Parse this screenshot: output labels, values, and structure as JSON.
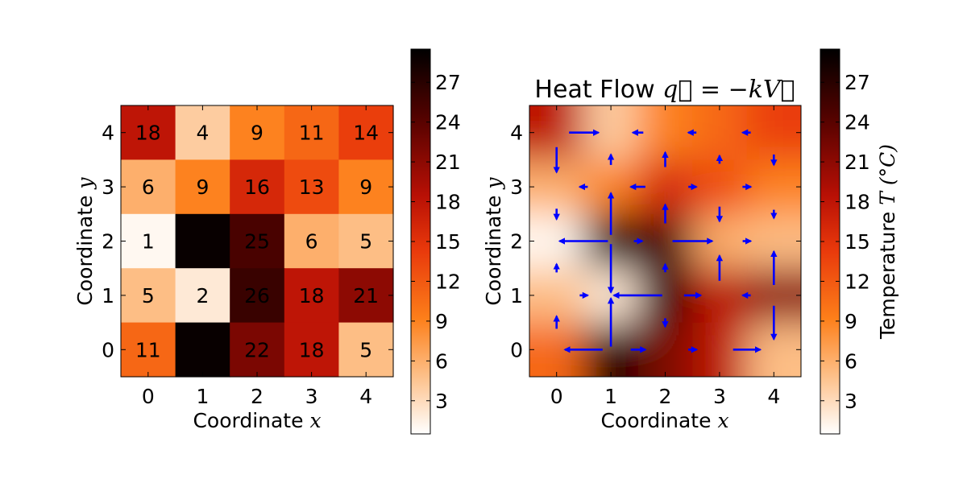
{
  "chart_data": [
    {
      "type": "heatmap",
      "xlabel": "Coordinate",
      "xlabel_math": "x",
      "ylabel": "Coordinate",
      "ylabel_math": "y",
      "x_ticks": [
        "0",
        "1",
        "2",
        "3",
        "4"
      ],
      "y_ticks": [
        "0",
        "1",
        "2",
        "3",
        "4"
      ],
      "grid": false,
      "values_rows_top_to_bottom": [
        [
          18,
          4,
          9,
          11,
          14
        ],
        [
          6,
          9,
          16,
          13,
          9
        ],
        [
          1,
          29,
          25,
          6,
          5
        ],
        [
          5,
          2,
          26,
          18,
          21
        ],
        [
          11,
          29,
          22,
          18,
          5
        ]
      ],
      "labels_rows_top_to_bottom": [
        [
          "18",
          "4",
          "9",
          "11",
          "14"
        ],
        [
          "6",
          "9",
          "16",
          "13",
          "9"
        ],
        [
          "1",
          "",
          "25",
          "6",
          "5"
        ],
        [
          "5",
          "2",
          "26",
          "18",
          "21"
        ],
        [
          "11",
          "",
          "22",
          "18",
          "5"
        ]
      ],
      "colormap": "gist_heat_r",
      "clim": [
        0.5,
        29.5
      ],
      "colorbar": {
        "ticks": [
          "3",
          "6",
          "9",
          "12",
          "15",
          "18",
          "21",
          "24",
          "27"
        ],
        "tick_values": [
          3,
          6,
          9,
          12,
          15,
          18,
          21,
          24,
          27
        ],
        "label": ""
      }
    },
    {
      "type": "heatmap",
      "title": "Heat Flow",
      "title_math": "q⃗ = −kV⃗",
      "xlabel": "Coordinate",
      "xlabel_math": "x",
      "ylabel": "Coordinate",
      "ylabel_math": "y",
      "x_ticks": [
        "0",
        "1",
        "2",
        "3",
        "4"
      ],
      "y_ticks": [
        "0",
        "1",
        "2",
        "3",
        "4"
      ],
      "interpolation": "smooth",
      "grid": false,
      "arrow_color": "#0000ff",
      "quiver_description": "heat flow vectors at half-integer positions, pointing from hot to cold",
      "colormap": "gist_heat_r",
      "clim": [
        0.5,
        29.5
      ],
      "colorbar": {
        "ticks": [
          "3",
          "6",
          "9",
          "12",
          "15",
          "18",
          "21",
          "24",
          "27"
        ],
        "tick_values": [
          3,
          6,
          9,
          12,
          15,
          18,
          21,
          24,
          27
        ],
        "label": "Temperature",
        "label_math": "T (°C)"
      }
    }
  ]
}
